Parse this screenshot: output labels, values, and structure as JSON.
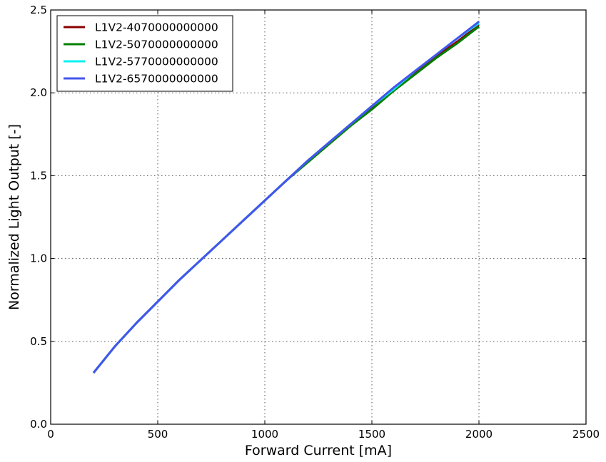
{
  "chart_data": {
    "type": "line",
    "title": "",
    "xlabel": "Forward Current [mA]",
    "ylabel": "Normalized Light Output [-]",
    "xlim": [
      0,
      2500
    ],
    "ylim": [
      0.0,
      2.5
    ],
    "xticks": [
      0,
      500,
      1000,
      1500,
      2000,
      2500
    ],
    "yticks": [
      0.0,
      0.5,
      1.0,
      1.5,
      2.0,
      2.5
    ],
    "xtick_labels": [
      "0",
      "500",
      "1000",
      "1500",
      "2000",
      "2500"
    ],
    "ytick_labels": [
      "0.0",
      "0.5",
      "1.0",
      "1.5",
      "2.0",
      "2.5"
    ],
    "grid": true,
    "legend_position": "top-left",
    "series": [
      {
        "name": "L1V2-4070000000000",
        "color": "#8b0000",
        "x": [
          200,
          300,
          400,
          500,
          600,
          700,
          800,
          900,
          1000,
          1100,
          1200,
          1300,
          1400,
          1500,
          1600,
          1700,
          1800,
          1900,
          2000
        ],
        "y": [
          0.31,
          0.47,
          0.61,
          0.74,
          0.87,
          0.99,
          1.11,
          1.23,
          1.35,
          1.47,
          1.59,
          1.7,
          1.81,
          1.91,
          2.02,
          2.12,
          2.22,
          2.31,
          2.41
        ]
      },
      {
        "name": "L1V2-5070000000000",
        "color": "#007f00",
        "x": [
          200,
          300,
          400,
          500,
          600,
          700,
          800,
          900,
          1000,
          1100,
          1200,
          1300,
          1400,
          1500,
          1600,
          1700,
          1800,
          1900,
          2000
        ],
        "y": [
          0.31,
          0.47,
          0.61,
          0.74,
          0.87,
          0.99,
          1.11,
          1.23,
          1.35,
          1.47,
          1.58,
          1.69,
          1.8,
          1.9,
          2.01,
          2.11,
          2.21,
          2.3,
          2.4
        ]
      },
      {
        "name": "L1V2-5770000000000",
        "color": "#00f0f0",
        "x": [
          200,
          300,
          400,
          500,
          600,
          700,
          800,
          900,
          1000,
          1100,
          1200,
          1300,
          1400,
          1500,
          1600,
          1700,
          1800,
          1900,
          2000
        ],
        "y": [
          0.31,
          0.47,
          0.61,
          0.74,
          0.87,
          0.99,
          1.11,
          1.23,
          1.35,
          1.47,
          1.59,
          1.7,
          1.81,
          1.92,
          2.02,
          2.13,
          2.23,
          2.33,
          2.42
        ]
      },
      {
        "name": "L1V2-6570000000000",
        "color": "#4455ee",
        "x": [
          200,
          300,
          400,
          500,
          600,
          700,
          800,
          900,
          1000,
          1100,
          1200,
          1300,
          1400,
          1500,
          1600,
          1700,
          1800,
          1900,
          2000
        ],
        "y": [
          0.31,
          0.47,
          0.61,
          0.74,
          0.87,
          0.99,
          1.11,
          1.23,
          1.35,
          1.47,
          1.59,
          1.7,
          1.81,
          1.92,
          2.03,
          2.13,
          2.23,
          2.33,
          2.43
        ]
      }
    ]
  }
}
